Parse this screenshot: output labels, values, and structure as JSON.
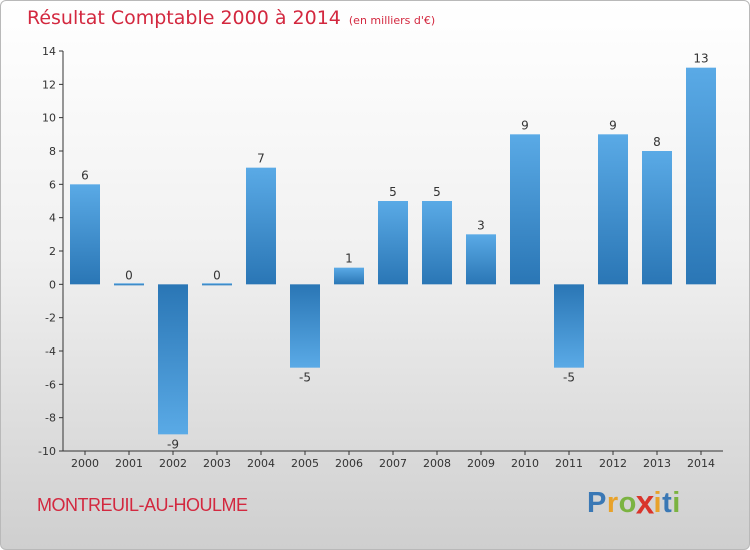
{
  "title": "Résultat Comptable 2000 à 2014",
  "unit": "(en milliers d'€)",
  "commune": "MONTREUIL-AU-HOULME",
  "logo": {
    "text": "Proxiti",
    "colors": [
      "#3a78b5",
      "#e8a22a",
      "#7bb341",
      "#d9342b",
      "#e8a22a",
      "#3a78b5",
      "#7bb341"
    ]
  },
  "colors": {
    "title": "#d3283f",
    "bar_light": "#5aaae6",
    "bar_dark": "#2a76b5"
  },
  "chart_data": {
    "type": "bar",
    "title": "Résultat Comptable 2000 à 2014",
    "xlabel": "",
    "ylabel": "",
    "ylim": [
      -10,
      14
    ],
    "y_ticks": [
      -10,
      -8,
      -6,
      -4,
      -2,
      0,
      2,
      4,
      6,
      8,
      10,
      12,
      14
    ],
    "grid": false,
    "categories": [
      "2000",
      "2001",
      "2002",
      "2003",
      "2004",
      "2005",
      "2006",
      "2007",
      "2008",
      "2009",
      "2010",
      "2011",
      "2012",
      "2013",
      "2014"
    ],
    "values": [
      6,
      0,
      -9,
      0,
      7,
      -5,
      1,
      5,
      5,
      3,
      9,
      -5,
      9,
      8,
      13
    ]
  }
}
